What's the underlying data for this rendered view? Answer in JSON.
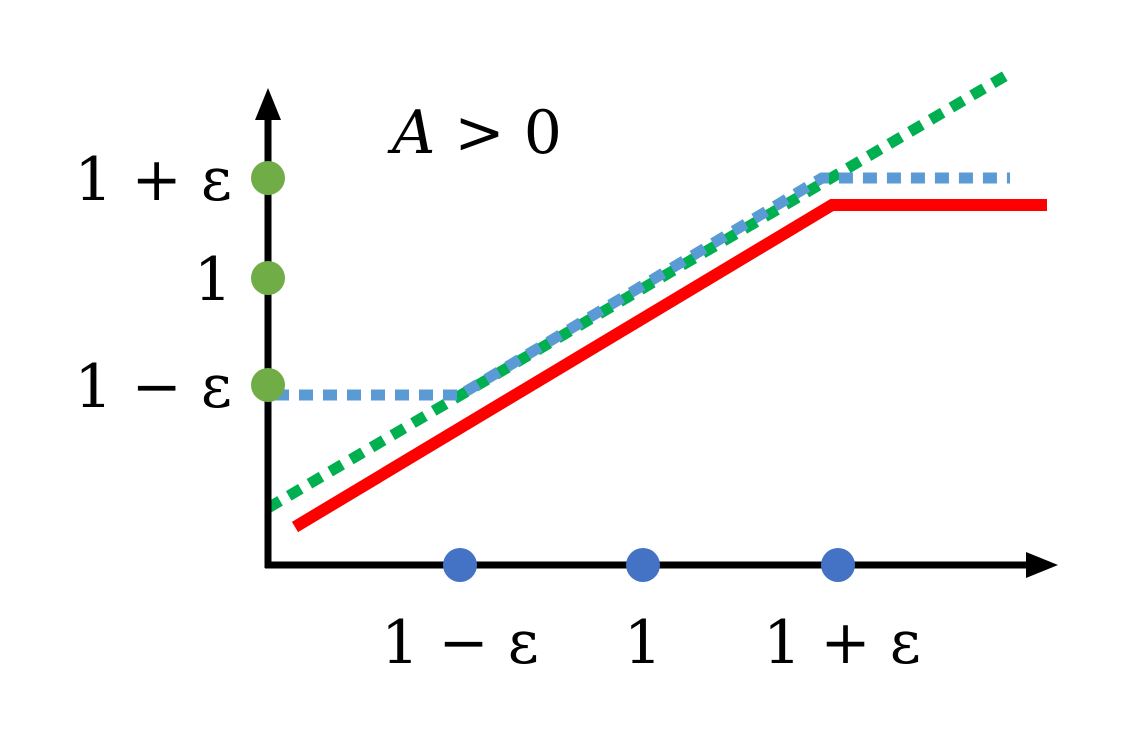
{
  "title": "A > 0",
  "title_parts": {
    "var": "A",
    "rest": " > 0"
  },
  "y_ticks": [
    "1 + ε",
    "1",
    "1 − ε"
  ],
  "x_ticks": [
    "1 − ε",
    "1",
    "1 + ε"
  ],
  "colors": {
    "axis": "#000000",
    "clipped_objective": "#ff0000",
    "clipped_ratio": "#5b9bd5",
    "unclipped_ratio": "#00b050",
    "y_dot": "#70ad47",
    "x_dot": "#4472c4"
  }
}
